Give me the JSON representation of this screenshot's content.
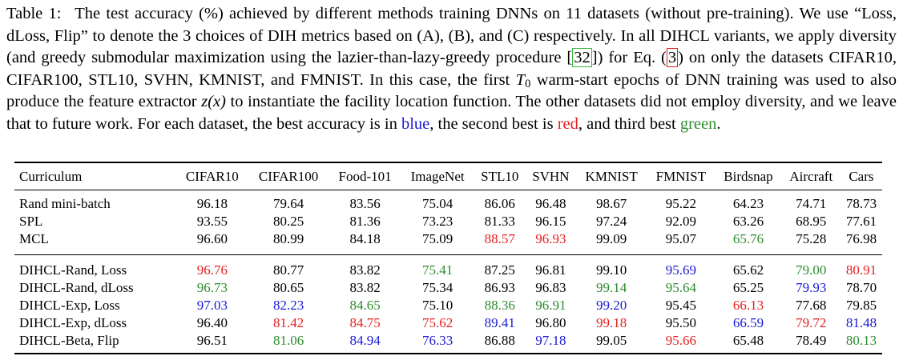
{
  "caption": {
    "label": "Table 1:",
    "p1": "The test accuracy (%) achieved by different methods training DNNs on 11 datasets (without pre-training). We use “Loss, dLoss, Flip” to denote the 3 choices of DIH metrics based on (A), (B), and (C) respectively. In all DIHCL variants, we apply diversity (and greedy submodular maximization using the lazier-than-lazy-greedy procedure [",
    "cite1": "32",
    "p2": "]) for Eq. (",
    "cite2": "3",
    "p3": ") on only the datasets CIFAR10, CIFAR100, STL10, SVHN, KMNIST, and FMNIST. In this case, the first ",
    "math_t": "T",
    "math_sub": "0",
    "p4": " warm-start epochs of DNN training was used to also produce the feature extractor ",
    "math_z": "z(x)",
    "p5": " to instantiate the facility location function. The other datasets did not employ diversity, and we leave that to future work. For each dataset, the best accuracy is in ",
    "w_blue": "blue",
    "p6": ", the second best is ",
    "w_red": "red",
    "p7": ", and third best ",
    "w_green": "green",
    "p8": "."
  },
  "table": {
    "headers": [
      "Curriculum",
      "CIFAR10",
      "CIFAR100",
      "Food-101",
      "ImageNet",
      "STL10",
      "SVHN",
      "KMNIST",
      "FMNIST",
      "Birdsnap",
      "Aircraft",
      "Cars"
    ],
    "groups": [
      [
        {
          "name": "Rand mini-batch",
          "values": [
            "96.18",
            "79.64",
            "83.56",
            "75.04",
            "86.06",
            "96.48",
            "98.67",
            "95.22",
            "64.23",
            "74.71",
            "78.73"
          ],
          "colors": [
            "",
            "",
            "",
            "",
            "",
            "",
            "",
            "",
            "",
            "",
            ""
          ]
        },
        {
          "name": "SPL",
          "values": [
            "93.55",
            "80.25",
            "81.36",
            "73.23",
            "81.33",
            "96.15",
            "97.24",
            "92.09",
            "63.26",
            "68.95",
            "77.61"
          ],
          "colors": [
            "",
            "",
            "",
            "",
            "",
            "",
            "",
            "",
            "",
            "",
            ""
          ]
        },
        {
          "name": "MCL",
          "values": [
            "96.60",
            "80.99",
            "84.18",
            "75.09",
            "88.57",
            "96.93",
            "99.09",
            "95.07",
            "65.76",
            "75.28",
            "76.98"
          ],
          "colors": [
            "",
            "",
            "",
            "",
            "red",
            "red",
            "",
            "",
            "green",
            "",
            ""
          ]
        }
      ],
      [
        {
          "name": "DIHCL-Rand, Loss",
          "values": [
            "96.76",
            "80.77",
            "83.82",
            "75.41",
            "87.25",
            "96.81",
            "99.10",
            "95.69",
            "65.62",
            "79.00",
            "80.91"
          ],
          "colors": [
            "red",
            "",
            "",
            "green",
            "",
            "",
            "",
            "blue",
            "",
            "green",
            "red"
          ]
        },
        {
          "name": "DIHCL-Rand, dLoss",
          "values": [
            "96.73",
            "80.65",
            "83.82",
            "75.34",
            "86.93",
            "96.83",
            "99.14",
            "95.64",
            "65.25",
            "79.93",
            "78.70"
          ],
          "colors": [
            "green",
            "",
            "",
            "",
            "",
            "",
            "green",
            "green",
            "",
            "blue",
            ""
          ]
        },
        {
          "name": "DIHCL-Exp, Loss",
          "values": [
            "97.03",
            "82.23",
            "84.65",
            "75.10",
            "88.36",
            "96.91",
            "99.20",
            "95.45",
            "66.13",
            "77.68",
            "79.85"
          ],
          "colors": [
            "blue",
            "blue",
            "green",
            "",
            "green",
            "green",
            "blue",
            "",
            "red",
            "",
            ""
          ]
        },
        {
          "name": "DIHCL-Exp, dLoss",
          "values": [
            "96.40",
            "81.42",
            "84.75",
            "75.62",
            "89.41",
            "96.80",
            "99.18",
            "95.50",
            "66.59",
            "79.72",
            "81.48"
          ],
          "colors": [
            "",
            "red",
            "red",
            "red",
            "blue",
            "",
            "red",
            "",
            "blue",
            "red",
            "blue"
          ]
        },
        {
          "name": "DIHCL-Beta, Flip",
          "values": [
            "96.51",
            "81.06",
            "84.94",
            "76.33",
            "86.88",
            "97.18",
            "99.05",
            "95.66",
            "65.48",
            "78.49",
            "80.13"
          ],
          "colors": [
            "",
            "green",
            "blue",
            "blue",
            "",
            "blue",
            "",
            "red",
            "",
            "",
            "green"
          ]
        }
      ]
    ]
  },
  "colors": {
    "blue": "#1a1ad6",
    "red": "#e42020",
    "green": "#2e8b2e"
  }
}
